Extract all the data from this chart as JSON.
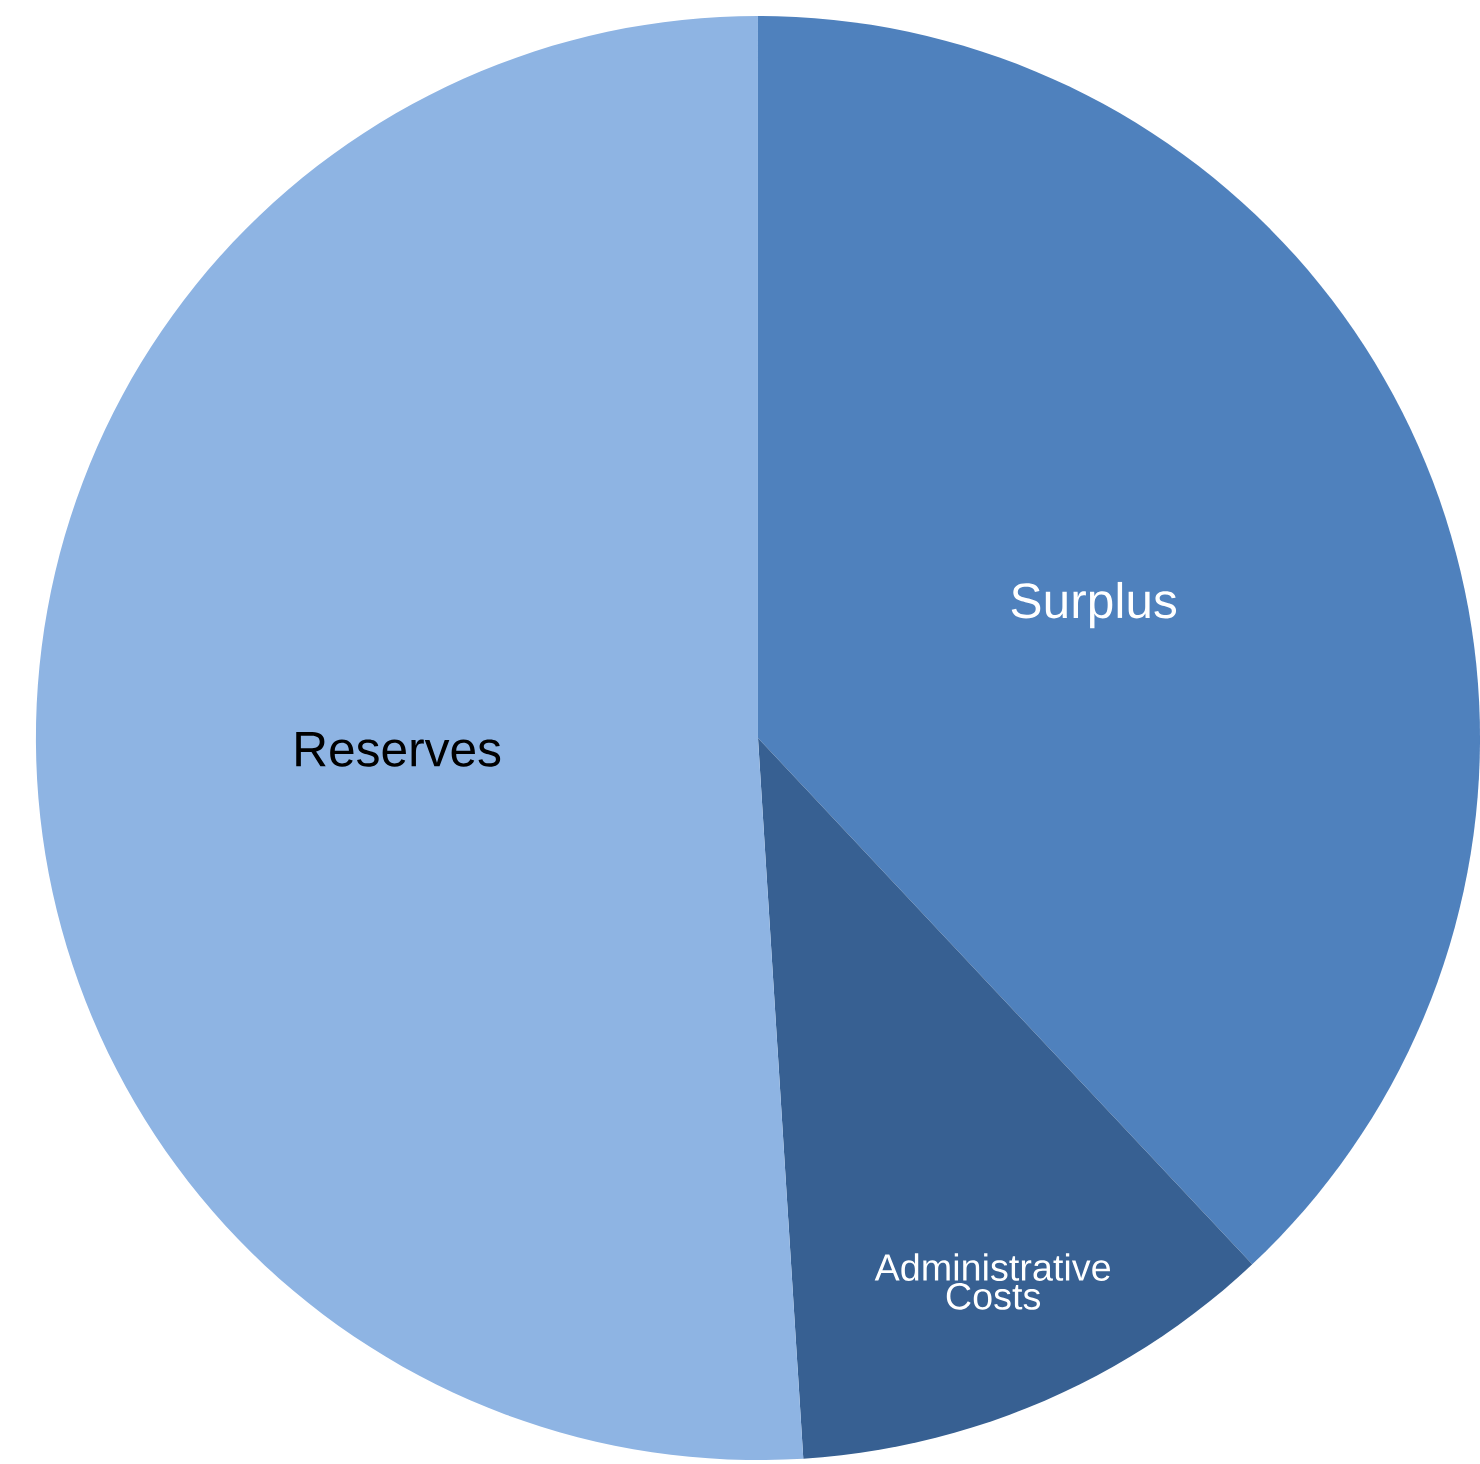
{
  "chart_data": {
    "type": "pie",
    "categories": [
      "Surplus",
      "Administrative Costs",
      "Reserves"
    ],
    "values": [
      38,
      11,
      51
    ],
    "colors": [
      "#4f81bd",
      "#376092",
      "#8eb4e3"
    ]
  }
}
